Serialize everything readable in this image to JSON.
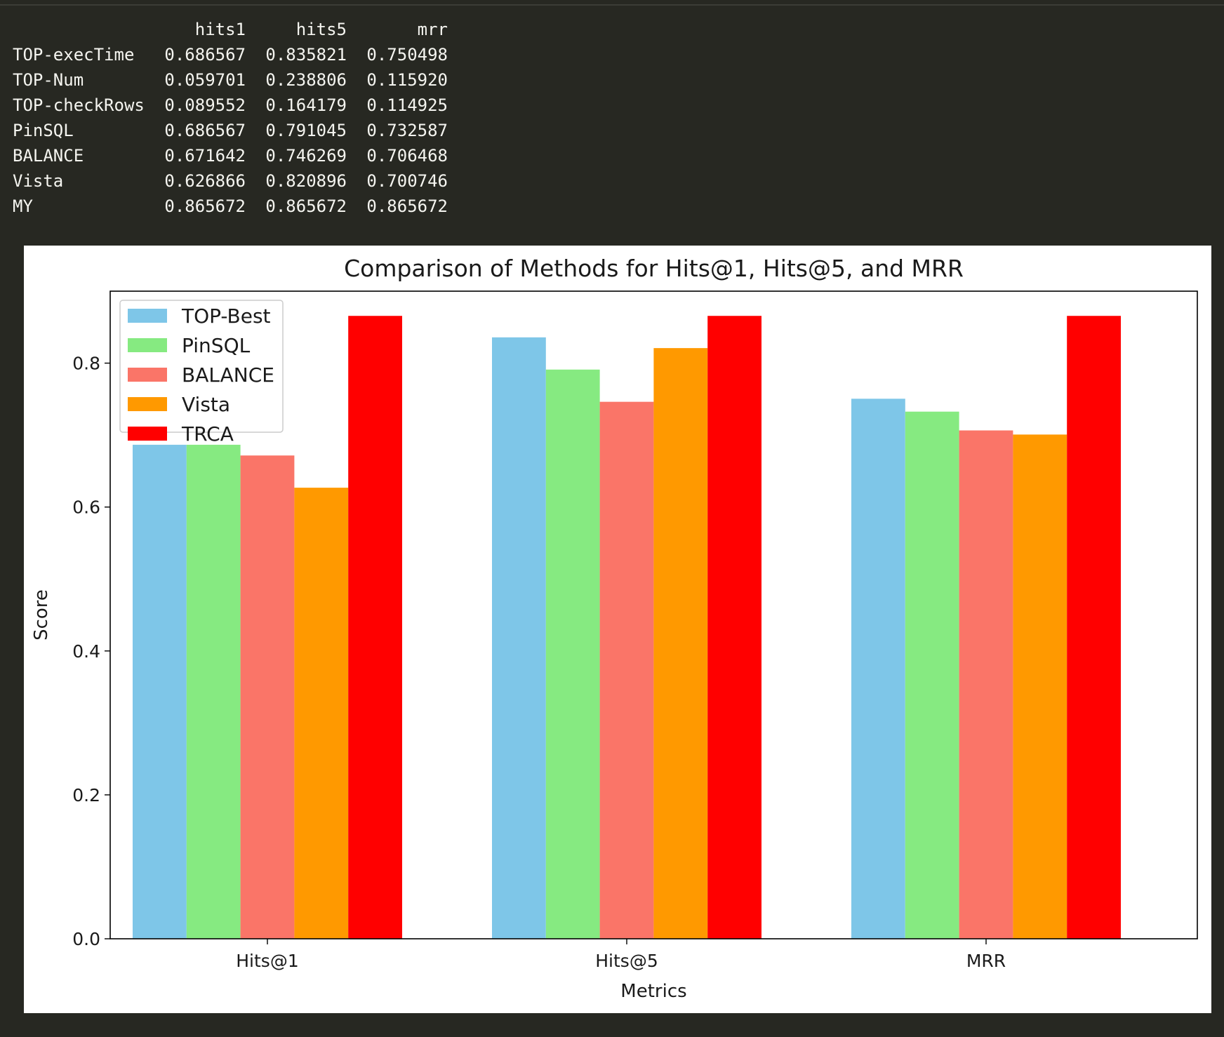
{
  "dataframe": {
    "columns": [
      "hits1",
      "hits5",
      "mrr"
    ],
    "rows": [
      {
        "index": "TOP-execTime",
        "values": [
          "0.686567",
          "0.835821",
          "0.750498"
        ]
      },
      {
        "index": "TOP-Num",
        "values": [
          "0.059701",
          "0.238806",
          "0.115920"
        ]
      },
      {
        "index": "TOP-checkRows",
        "values": [
          "0.089552",
          "0.164179",
          "0.114925"
        ]
      },
      {
        "index": "PinSQL",
        "values": [
          "0.686567",
          "0.791045",
          "0.732587"
        ]
      },
      {
        "index": "BALANCE",
        "values": [
          "0.671642",
          "0.746269",
          "0.706468"
        ]
      },
      {
        "index": "Vista",
        "values": [
          "0.626866",
          "0.820896",
          "0.700746"
        ]
      },
      {
        "index": "MY",
        "values": [
          "0.865672",
          "0.865672",
          "0.865672"
        ]
      }
    ]
  },
  "chart_data": {
    "type": "bar",
    "title": "Comparison of Methods for Hits@1, Hits@5, and MRR",
    "xlabel": "Metrics",
    "ylabel": "Score",
    "categories": [
      "Hits@1",
      "Hits@5",
      "MRR"
    ],
    "ylim": [
      0,
      0.9
    ],
    "yticks": [
      "0.0",
      "0.2",
      "0.4",
      "0.6",
      "0.8"
    ],
    "legend_position": "top-left",
    "grid": false,
    "series": [
      {
        "name": "TOP-Best",
        "color": "#7ec6e8",
        "values": [
          0.686567,
          0.835821,
          0.750498
        ]
      },
      {
        "name": "PinSQL",
        "color": "#86ea81",
        "values": [
          0.686567,
          0.791045,
          0.732587
        ]
      },
      {
        "name": "BALANCE",
        "color": "#fa7568",
        "values": [
          0.671642,
          0.746269,
          0.706468
        ]
      },
      {
        "name": "Vista",
        "color": "#ff9900",
        "values": [
          0.626866,
          0.820896,
          0.700746
        ]
      },
      {
        "name": "TRCA",
        "color": "#ff0000",
        "values": [
          0.865672,
          0.865672,
          0.865672
        ]
      }
    ]
  }
}
